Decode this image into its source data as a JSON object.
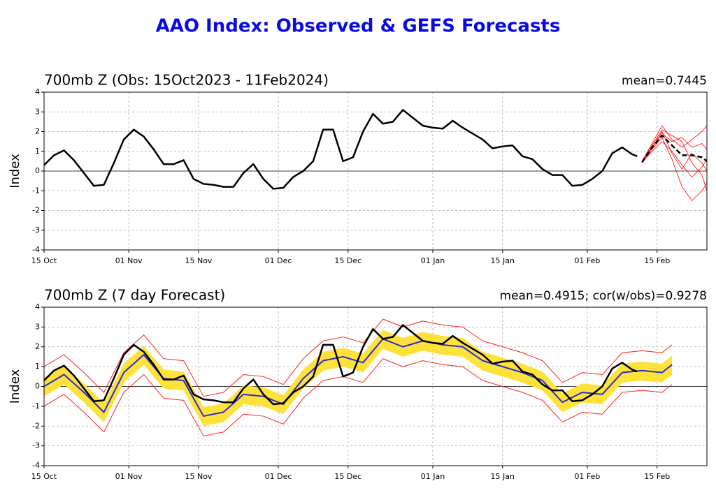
{
  "title": "AAO Index: Observed & GEFS Forecasts",
  "chart_data": [
    {
      "type": "line",
      "title": "700mb Z (Obs: 15Oct2023 - 11Feb2024)",
      "annotation": "mean=0.7445",
      "ylabel": "Index",
      "xlim": [
        "2023-10-15",
        "2024-02-25"
      ],
      "ylim": [
        -4,
        4
      ],
      "yticks": [
        -4,
        -3,
        -2,
        -1,
        0,
        1,
        2,
        3,
        4
      ],
      "xticks": [
        {
          "value": "2023-10-15",
          "label": "15 Oct"
        },
        {
          "value": "2023-11-01",
          "label": "01 Nov"
        },
        {
          "value": "2023-11-15",
          "label": "15 Nov"
        },
        {
          "value": "2023-12-01",
          "label": "01 Dec"
        },
        {
          "value": "2023-12-15",
          "label": "15 Dec"
        },
        {
          "value": "2024-01-01",
          "label": "01 Jan"
        },
        {
          "value": "2024-01-15",
          "label": "15 Jan"
        },
        {
          "value": "2024-02-01",
          "label": "01 Feb"
        },
        {
          "value": "2024-02-15",
          "label": "15 Feb"
        }
      ],
      "grid": true,
      "x": [
        "2023-10-15",
        "2023-10-17",
        "2023-10-19",
        "2023-10-21",
        "2023-10-23",
        "2023-10-25",
        "2023-10-27",
        "2023-10-29",
        "2023-10-31",
        "2023-11-02",
        "2023-11-04",
        "2023-11-06",
        "2023-11-08",
        "2023-11-10",
        "2023-11-12",
        "2023-11-14",
        "2023-11-16",
        "2023-11-18",
        "2023-11-20",
        "2023-11-22",
        "2023-11-24",
        "2023-11-26",
        "2023-11-28",
        "2023-11-30",
        "2023-12-02",
        "2023-12-04",
        "2023-12-06",
        "2023-12-08",
        "2023-12-10",
        "2023-12-12",
        "2023-12-14",
        "2023-12-16",
        "2023-12-18",
        "2023-12-20",
        "2023-12-22",
        "2023-12-24",
        "2023-12-26",
        "2023-12-28",
        "2023-12-30",
        "2024-01-01",
        "2024-01-03",
        "2024-01-05",
        "2024-01-07",
        "2024-01-09",
        "2024-01-11",
        "2024-01-13",
        "2024-01-15",
        "2024-01-17",
        "2024-01-19",
        "2024-01-21",
        "2024-01-23",
        "2024-01-25",
        "2024-01-27",
        "2024-01-29",
        "2024-01-31",
        "2024-02-02",
        "2024-02-04",
        "2024-02-06",
        "2024-02-08",
        "2024-02-10",
        "2024-02-11"
      ],
      "series": [
        {
          "color": "#ff0000",
          "width": 0.8,
          "x": [
            "2024-02-12",
            "2024-02-14",
            "2024-02-16",
            "2024-02-18",
            "2024-02-20",
            "2024-02-22",
            "2024-02-24",
            "2024-02-25"
          ],
          "values": [
            0.5,
            1.4,
            2.3,
            1.6,
            1.2,
            1.6,
            2.0,
            2.3
          ]
        },
        {
          "color": "#ff0000",
          "width": 0.8,
          "x": [
            "2024-02-12",
            "2024-02-14",
            "2024-02-16",
            "2024-02-18",
            "2024-02-20",
            "2024-02-22",
            "2024-02-24",
            "2024-02-25"
          ],
          "values": [
            0.4,
            1.1,
            1.7,
            0.6,
            -0.8,
            -1.5,
            -1.0,
            -0.6
          ]
        },
        {
          "color": "#ff0000",
          "width": 0.8,
          "x": [
            "2024-02-12",
            "2024-02-14",
            "2024-02-16",
            "2024-02-18",
            "2024-02-20",
            "2024-02-22",
            "2024-02-24",
            "2024-02-25"
          ],
          "values": [
            0.5,
            1.3,
            2.1,
            1.8,
            1.5,
            0.4,
            -0.2,
            -1.0
          ]
        },
        {
          "color": "#ff0000",
          "width": 0.8,
          "x": [
            "2024-02-12",
            "2024-02-14",
            "2024-02-16",
            "2024-02-18",
            "2024-02-20",
            "2024-02-22",
            "2024-02-24",
            "2024-02-25"
          ],
          "values": [
            0.45,
            1.0,
            1.5,
            1.0,
            0.3,
            -0.3,
            0.2,
            0.6
          ]
        },
        {
          "color": "#ff0000",
          "width": 0.8,
          "x": [
            "2024-02-12",
            "2024-02-14",
            "2024-02-16",
            "2024-02-18",
            "2024-02-20",
            "2024-02-22",
            "2024-02-24",
            "2024-02-25"
          ],
          "values": [
            0.5,
            1.2,
            1.9,
            1.5,
            1.7,
            1.2,
            1.4,
            1.1
          ]
        },
        {
          "color": "#ff0000",
          "width": 0.8,
          "x": [
            "2024-02-12",
            "2024-02-14",
            "2024-02-16",
            "2024-02-18",
            "2024-02-20",
            "2024-02-22",
            "2024-02-24",
            "2024-02-25"
          ],
          "values": [
            0.4,
            1.2,
            2.0,
            0.9,
            0.1,
            0.9,
            0.4,
            0.0
          ]
        },
        {
          "color": "#000000",
          "width": 2.5,
          "values": [
            0.3,
            0.8,
            1.05,
            0.55,
            -0.1,
            -0.75,
            -0.7,
            0.4,
            1.6,
            2.1,
            1.75,
            1.1,
            0.35,
            0.35,
            0.55,
            -0.4,
            -0.65,
            -0.7,
            -0.8,
            -0.8,
            -0.1,
            0.35,
            -0.4,
            -0.9,
            -0.85,
            -0.3,
            0.0,
            0.5,
            2.1,
            2.1,
            0.5,
            0.7,
            2.0,
            2.9,
            2.4,
            2.5,
            3.1,
            2.7,
            2.3,
            2.2,
            2.15,
            2.55,
            2.2,
            1.9,
            1.6,
            1.15,
            1.25,
            1.3,
            0.75,
            0.6,
            0.1,
            -0.2,
            -0.2,
            -0.75,
            -0.7,
            -0.4,
            0.0,
            0.9,
            1.2,
            0.85,
            0.75
          ]
        },
        {
          "color": "#000000",
          "width": 2.5,
          "dash": true,
          "x": [
            "2024-02-12",
            "2024-02-14",
            "2024-02-16",
            "2024-02-18",
            "2024-02-20",
            "2024-02-22",
            "2024-02-24",
            "2024-02-25"
          ],
          "values": [
            0.45,
            1.2,
            1.8,
            1.3,
            0.8,
            0.8,
            0.7,
            0.5
          ]
        }
      ]
    },
    {
      "type": "line",
      "title": "700mb Z (7 day Forecast)",
      "annotation": "mean=0.4915; cor(w/obs)=0.9278",
      "ylabel": "Index",
      "xlim": [
        "2023-10-15",
        "2024-02-25"
      ],
      "ylim": [
        -4,
        4
      ],
      "yticks": [
        -4,
        -3,
        -2,
        -1,
        0,
        1,
        2,
        3,
        4
      ],
      "xticks": [
        {
          "value": "2023-10-15",
          "label": "15 Oct"
        },
        {
          "value": "2023-11-01",
          "label": "01 Nov"
        },
        {
          "value": "2023-11-15",
          "label": "15 Nov"
        },
        {
          "value": "2023-12-01",
          "label": "01 Dec"
        },
        {
          "value": "2023-12-15",
          "label": "15 Dec"
        },
        {
          "value": "2024-01-01",
          "label": "01 Jan"
        },
        {
          "value": "2024-01-15",
          "label": "15 Jan"
        },
        {
          "value": "2024-02-01",
          "label": "01 Feb"
        },
        {
          "value": "2024-02-15",
          "label": "15 Feb"
        }
      ],
      "grid": true,
      "x": [
        "2023-10-15",
        "2023-10-17",
        "2023-10-19",
        "2023-10-21",
        "2023-10-23",
        "2023-10-25",
        "2023-10-27",
        "2023-10-29",
        "2023-10-31",
        "2023-11-02",
        "2023-11-04",
        "2023-11-06",
        "2023-11-08",
        "2023-11-10",
        "2023-11-12",
        "2023-11-14",
        "2023-11-16",
        "2023-11-18",
        "2023-11-20",
        "2023-11-22",
        "2023-11-24",
        "2023-11-26",
        "2023-11-28",
        "2023-11-30",
        "2023-12-02",
        "2023-12-04",
        "2023-12-06",
        "2023-12-08",
        "2023-12-10",
        "2023-12-12",
        "2023-12-14",
        "2023-12-16",
        "2023-12-18",
        "2023-12-20",
        "2023-12-22",
        "2023-12-24",
        "2023-12-26",
        "2023-12-28",
        "2023-12-30",
        "2024-01-01",
        "2024-01-03",
        "2024-01-05",
        "2024-01-07",
        "2024-01-09",
        "2024-01-11",
        "2024-01-13",
        "2024-01-15",
        "2024-01-17",
        "2024-01-19",
        "2024-01-21",
        "2024-01-23",
        "2024-01-25",
        "2024-01-27",
        "2024-01-29",
        "2024-01-31",
        "2024-02-02",
        "2024-02-04",
        "2024-02-06",
        "2024-02-08",
        "2024-02-10",
        "2024-02-11"
      ],
      "series": [
        {
          "type": "band",
          "color": "#fde23a",
          "x": [
            "2023-10-15",
            "2023-10-19",
            "2023-10-23",
            "2023-10-27",
            "2023-10-31",
            "2023-11-04",
            "2023-11-08",
            "2023-11-12",
            "2023-11-16",
            "2023-11-20",
            "2023-11-24",
            "2023-11-28",
            "2023-12-02",
            "2023-12-06",
            "2023-12-10",
            "2023-12-14",
            "2023-12-18",
            "2023-12-22",
            "2023-12-26",
            "2023-12-30",
            "2024-01-03",
            "2024-01-07",
            "2024-01-11",
            "2024-01-15",
            "2024-01-19",
            "2024-01-23",
            "2024-01-27",
            "2024-01-31",
            "2024-02-04",
            "2024-02-08",
            "2024-02-12",
            "2024-02-16",
            "2024-02-18"
          ],
          "upper": [
            0.45,
            1.05,
            0.15,
            -0.85,
            1.15,
            2.05,
            0.85,
            0.75,
            -1.05,
            -0.85,
            0.05,
            -0.05,
            -0.45,
            0.85,
            1.75,
            1.95,
            1.65,
            2.85,
            2.45,
            2.75,
            2.55,
            2.45,
            1.75,
            1.45,
            1.15,
            0.75,
            -0.35,
            0.15,
            0.05,
            1.15,
            1.25,
            1.15,
            1.55
          ],
          "lower": [
            -0.5,
            0.1,
            -0.8,
            -1.8,
            0.2,
            1.1,
            -0.1,
            -0.2,
            -2.0,
            -1.8,
            -0.9,
            -1.0,
            -1.4,
            -0.1,
            0.8,
            1.0,
            0.7,
            1.9,
            1.5,
            1.8,
            1.6,
            1.5,
            0.8,
            0.5,
            0.2,
            -0.2,
            -1.3,
            -0.8,
            -0.9,
            0.2,
            0.3,
            0.2,
            0.6
          ]
        },
        {
          "color": "#ff2020",
          "width": 1,
          "x": [
            "2023-10-15",
            "2023-10-19",
            "2023-10-23",
            "2023-10-27",
            "2023-10-31",
            "2023-11-04",
            "2023-11-08",
            "2023-11-12",
            "2023-11-16",
            "2023-11-20",
            "2023-11-24",
            "2023-11-28",
            "2023-12-02",
            "2023-12-06",
            "2023-12-10",
            "2023-12-14",
            "2023-12-18",
            "2023-12-22",
            "2023-12-26",
            "2023-12-30",
            "2024-01-03",
            "2024-01-07",
            "2024-01-11",
            "2024-01-15",
            "2024-01-19",
            "2024-01-23",
            "2024-01-27",
            "2024-01-31",
            "2024-02-04",
            "2024-02-08",
            "2024-02-12",
            "2024-02-16",
            "2024-02-18"
          ],
          "values": [
            1.0,
            1.6,
            0.7,
            -0.3,
            1.7,
            2.6,
            1.4,
            1.3,
            -0.5,
            -0.3,
            0.6,
            0.5,
            0.1,
            1.4,
            2.3,
            2.5,
            2.2,
            3.4,
            3.0,
            3.3,
            3.1,
            3.0,
            2.3,
            2.0,
            1.7,
            1.3,
            0.2,
            0.7,
            0.6,
            1.7,
            1.8,
            1.7,
            2.1
          ]
        },
        {
          "color": "#ff2020",
          "width": 1,
          "x": [
            "2023-10-15",
            "2023-10-19",
            "2023-10-23",
            "2023-10-27",
            "2023-10-31",
            "2023-11-04",
            "2023-11-08",
            "2023-11-12",
            "2023-11-16",
            "2023-11-20",
            "2023-11-24",
            "2023-11-28",
            "2023-12-02",
            "2023-12-06",
            "2023-12-10",
            "2023-12-14",
            "2023-12-18",
            "2023-12-22",
            "2023-12-26",
            "2023-12-30",
            "2024-01-03",
            "2024-01-07",
            "2024-01-11",
            "2024-01-15",
            "2024-01-19",
            "2024-01-23",
            "2024-01-27",
            "2024-01-31",
            "2024-02-04",
            "2024-02-08",
            "2024-02-12",
            "2024-02-16",
            "2024-02-18"
          ],
          "values": [
            -1.0,
            -0.4,
            -1.3,
            -2.3,
            -0.3,
            0.6,
            -0.6,
            -0.7,
            -2.5,
            -2.3,
            -1.4,
            -1.5,
            -1.9,
            -0.6,
            0.3,
            0.5,
            0.2,
            1.4,
            1.0,
            1.3,
            1.1,
            1.0,
            0.3,
            0.0,
            -0.3,
            -0.7,
            -1.8,
            -1.3,
            -1.4,
            -0.3,
            -0.2,
            -0.3,
            0.1
          ]
        },
        {
          "color": "#2b2bd6",
          "width": 2,
          "x": [
            "2023-10-15",
            "2023-10-19",
            "2023-10-23",
            "2023-10-27",
            "2023-10-31",
            "2023-11-04",
            "2023-11-08",
            "2023-11-12",
            "2023-11-16",
            "2023-11-20",
            "2023-11-24",
            "2023-11-28",
            "2023-12-02",
            "2023-12-06",
            "2023-12-10",
            "2023-12-14",
            "2023-12-18",
            "2023-12-22",
            "2023-12-26",
            "2023-12-30",
            "2024-01-03",
            "2024-01-07",
            "2024-01-11",
            "2024-01-15",
            "2024-01-19",
            "2024-01-23",
            "2024-01-27",
            "2024-01-31",
            "2024-02-04",
            "2024-02-08",
            "2024-02-12",
            "2024-02-16",
            "2024-02-18"
          ],
          "values": [
            0.0,
            0.6,
            -0.3,
            -1.3,
            0.7,
            1.6,
            0.4,
            0.3,
            -1.5,
            -1.3,
            -0.4,
            -0.5,
            -0.9,
            0.4,
            1.3,
            1.5,
            1.2,
            2.4,
            2.0,
            2.3,
            2.1,
            2.0,
            1.3,
            1.0,
            0.7,
            0.3,
            -0.8,
            -0.3,
            -0.4,
            0.7,
            0.8,
            0.7,
            1.1
          ]
        },
        {
          "color": "#000000",
          "width": 2.5,
          "values": [
            0.3,
            0.8,
            1.05,
            0.55,
            -0.1,
            -0.75,
            -0.7,
            0.4,
            1.6,
            2.1,
            1.75,
            1.1,
            0.35,
            0.35,
            0.55,
            -0.4,
            -0.65,
            -0.7,
            -0.8,
            -0.8,
            -0.1,
            0.35,
            -0.4,
            -0.9,
            -0.85,
            -0.3,
            0.0,
            0.5,
            2.1,
            2.1,
            0.5,
            0.7,
            2.0,
            2.9,
            2.4,
            2.5,
            3.1,
            2.7,
            2.3,
            2.2,
            2.15,
            2.55,
            2.2,
            1.9,
            1.6,
            1.15,
            1.25,
            1.3,
            0.75,
            0.6,
            0.1,
            -0.2,
            -0.2,
            -0.75,
            -0.7,
            -0.4,
            0.0,
            0.9,
            1.2,
            0.85,
            0.75
          ]
        }
      ]
    }
  ]
}
